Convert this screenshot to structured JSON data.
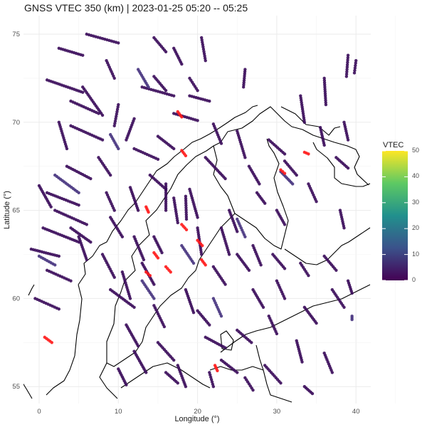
{
  "title": "GNSS VTEC 350 (km) | 2023-01-25 05:20 -- 05:25",
  "chart_data": {
    "type": "scatter",
    "title": "GNSS VTEC 350 (km) | 2023-01-25 05:20 -- 05:25",
    "xlabel": "Longitude (°)",
    "ylabel": "Latitude (°)",
    "xlim": [
      -3,
      41
    ],
    "ylim": [
      54,
      76
    ],
    "x_ticks": [
      "0",
      "10",
      "20",
      "30",
      "40"
    ],
    "y_ticks": [
      "55",
      "60",
      "65",
      "70",
      "75"
    ],
    "grid": true,
    "legend": {
      "title": "VTEC",
      "position": "right",
      "colormap": "viridis",
      "range": [
        0,
        50
      ],
      "ticks": [
        "0",
        "10",
        "20",
        "30",
        "40",
        "50"
      ]
    },
    "tracks_low": [
      [
        6,
        75,
        10,
        74.5
      ],
      [
        2.5,
        74.2,
        5.5,
        73.8
      ],
      [
        8.5,
        73.5,
        9.5,
        72.5
      ],
      [
        1,
        72.4,
        5.5,
        71.7
      ],
      [
        4,
        71.2,
        7.5,
        70.5
      ],
      [
        5.5,
        72,
        8,
        70.4
      ],
      [
        10,
        71,
        9.5,
        69.8
      ],
      [
        12,
        70.2,
        11,
        69
      ],
      [
        4,
        69.8,
        8,
        69
      ],
      [
        0,
        66.4,
        1.5,
        65.2
      ],
      [
        3.5,
        67.5,
        6.5,
        66.8
      ],
      [
        1,
        66,
        5,
        65.3
      ],
      [
        2,
        65,
        6,
        64.2
      ],
      [
        0.5,
        64,
        5,
        63.2
      ],
      [
        -1,
        62.8,
        2.5,
        62.4
      ],
      [
        1,
        61.6,
        4,
        61
      ],
      [
        -0.5,
        60,
        2.5,
        59.4
      ],
      [
        9,
        60.5,
        12,
        59.5
      ],
      [
        13,
        72,
        17,
        71.5
      ],
      [
        17,
        70.5,
        20,
        70.1
      ],
      [
        19,
        71.5,
        21.5,
        71.2
      ],
      [
        15,
        69.2,
        17,
        68.5
      ],
      [
        22,
        69.9,
        23,
        68.8
      ],
      [
        12,
        68.5,
        15,
        67.9
      ],
      [
        14,
        67,
        16,
        66.2
      ],
      [
        21,
        68,
        23.5,
        66.8
      ],
      [
        25,
        69.5,
        26,
        68
      ],
      [
        29,
        69,
        31,
        68.2
      ],
      [
        33,
        71.5,
        33.5,
        70
      ],
      [
        36,
        72.5,
        36.2,
        71
      ],
      [
        39,
        73.8,
        38.8,
        72.6
      ],
      [
        35.5,
        69.7,
        36,
        68.7
      ],
      [
        37.5,
        68,
        39,
        67.4
      ],
      [
        31,
        67.8,
        32.5,
        67
      ],
      [
        34,
        66.5,
        35,
        65.5
      ],
      [
        27.5,
        66,
        28.5,
        65.4
      ],
      [
        30,
        65,
        31,
        64.2
      ],
      [
        24,
        65,
        25,
        63.8
      ],
      [
        19,
        66.2,
        20,
        64.6
      ],
      [
        16,
        66.5,
        16,
        65
      ],
      [
        17,
        65.7,
        17.5,
        64.3
      ],
      [
        18.5,
        65.8,
        18.6,
        64.5
      ],
      [
        20,
        64,
        20.5,
        62.5
      ],
      [
        14.5,
        63.5,
        15.5,
        62.6
      ],
      [
        12,
        63.5,
        13.2,
        62.2
      ],
      [
        13,
        62,
        14.5,
        60.8
      ],
      [
        10.5,
        61.5,
        11.5,
        60
      ],
      [
        8,
        62.5,
        9.5,
        61.2
      ],
      [
        5,
        63.5,
        6,
        62.2
      ],
      [
        22,
        61.8,
        23.5,
        60.8
      ],
      [
        25,
        62.5,
        26.5,
        61.6
      ],
      [
        27,
        63,
        28,
        61.9
      ],
      [
        29.5,
        62.5,
        31,
        61.7
      ],
      [
        33,
        62,
        34,
        61.3
      ],
      [
        36,
        62.4,
        37.5,
        61.6
      ],
      [
        37,
        60.5,
        38.5,
        59.5
      ],
      [
        33.5,
        59.5,
        35,
        58.6
      ],
      [
        29,
        59,
        30,
        58
      ],
      [
        25,
        58.2,
        26.8,
        57.5
      ],
      [
        21,
        57.8,
        23.5,
        57.2
      ],
      [
        15,
        57.5,
        17,
        56.5
      ],
      [
        12,
        57,
        13.5,
        55.8
      ],
      [
        10,
        56,
        11,
        55.1
      ],
      [
        17.5,
        56.2,
        18.5,
        55
      ],
      [
        23,
        56.5,
        25,
        55.8
      ],
      [
        28.5,
        56.2,
        30.5,
        55.2
      ],
      [
        32.5,
        57.6,
        33.2,
        56.4
      ],
      [
        36,
        56.9,
        37,
        55.8
      ],
      [
        40,
        73.5,
        39.8,
        72.8
      ],
      [
        26,
        73,
        25.8,
        72
      ],
      [
        20.5,
        74.8,
        21,
        73.5
      ],
      [
        17,
        74.2,
        18,
        73.3
      ],
      [
        14.5,
        74.8,
        16,
        74
      ],
      [
        14.5,
        72.6,
        16,
        71.8
      ],
      [
        19,
        72.5,
        20,
        71.8
      ],
      [
        7.5,
        68,
        9,
        67
      ],
      [
        4,
        64,
        6.5,
        63.2
      ],
      [
        9,
        64.6,
        10.5,
        63.5
      ],
      [
        2.5,
        70,
        3.5,
        68.5
      ],
      [
        8.5,
        66,
        9.5,
        65
      ],
      [
        11.5,
        66.3,
        12.5,
        65
      ],
      [
        23,
        64,
        24,
        62.5
      ],
      [
        26.5,
        67.5,
        27.8,
        66.5
      ],
      [
        30,
        61,
        31,
        60
      ],
      [
        27,
        60.5,
        28.3,
        59.5
      ],
      [
        18.5,
        60.5,
        19.5,
        59.2
      ],
      [
        20,
        59.3,
        21.5,
        58.5
      ],
      [
        14.5,
        59.6,
        15.8,
        58.4
      ],
      [
        11,
        58.5,
        12.5,
        57.3
      ],
      [
        16,
        55.8,
        17.5,
        55.2
      ],
      [
        21.5,
        55.8,
        22,
        55
      ],
      [
        26,
        55.5,
        27,
        54.8
      ],
      [
        33.5,
        55,
        34.5,
        54.6
      ],
      [
        38,
        65,
        38.5,
        64
      ],
      [
        39,
        61,
        39.5,
        60.3
      ],
      [
        38.5,
        70,
        39,
        69
      ]
    ],
    "tracks_mid": [
      [
        12.5,
        73,
        13.8,
        72
      ],
      [
        2,
        67,
        5,
        66
      ],
      [
        0,
        62.4,
        2,
        61.9
      ],
      [
        18,
        63,
        19.5,
        62
      ],
      [
        25,
        64.5,
        26,
        63.5
      ],
      [
        22,
        60,
        23,
        59
      ],
      [
        13,
        61,
        14.5,
        60
      ],
      [
        30.5,
        67.2,
        32,
        66.5
      ],
      [
        9,
        69.3,
        10,
        68.5
      ],
      [
        39.5,
        59,
        39.5,
        58.8
      ]
    ],
    "tracks_high": [
      [
        17.5,
        70.6,
        18,
        70.3
      ],
      [
        18,
        68.4,
        18.5,
        68.1
      ],
      [
        13.5,
        65.2,
        13.8,
        64.9
      ],
      [
        18,
        64.2,
        18.6,
        63.9
      ],
      [
        20,
        63.3,
        20.6,
        63
      ],
      [
        14.5,
        62.6,
        15,
        62.3
      ],
      [
        16,
        61.8,
        16.6,
        61.5
      ],
      [
        13.5,
        61.5,
        14,
        61.3
      ],
      [
        20.5,
        62.2,
        21,
        61.9
      ],
      [
        30.5,
        67.3,
        31,
        67.1
      ],
      [
        33.5,
        68.3,
        34,
        68.2
      ],
      [
        0.7,
        57.8,
        1.6,
        57.5
      ],
      [
        22.2,
        56.2,
        22.5,
        55.9
      ]
    ]
  }
}
